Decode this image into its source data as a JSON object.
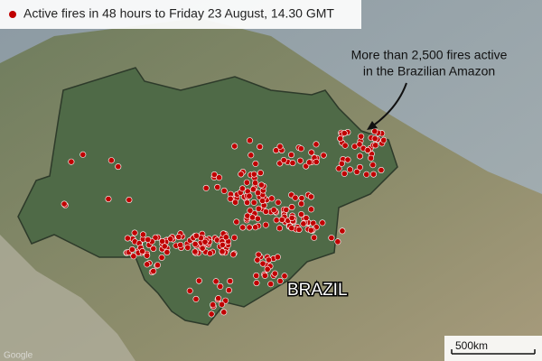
{
  "legend": {
    "label": "Active fires in 48 hours to Friday 23 August, 14.30 GMT"
  },
  "annotation": {
    "lines": [
      "More than 2,500 fires active",
      "in the Brazilian Amazon"
    ]
  },
  "country_label": "BRAZIL",
  "scale_bar": {
    "label": "500km"
  },
  "attribution": "Google"
}
